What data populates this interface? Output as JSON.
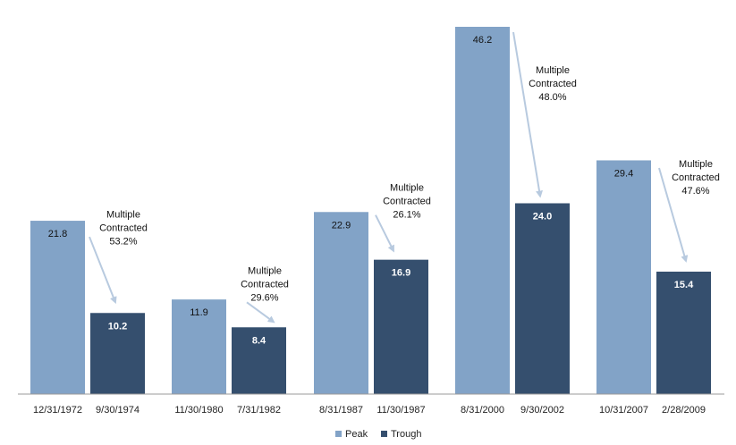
{
  "chart_data": {
    "type": "bar",
    "title": "",
    "xlabel": "",
    "ylabel": "",
    "ylim": [
      0,
      46.2
    ],
    "grid": false,
    "legend_position": "bottom",
    "colors": {
      "Peak": "#82a3c7",
      "Trough": "#354f6e",
      "arrow": "#b8cadf"
    },
    "series": [
      {
        "name": "Peak",
        "values": [
          21.8,
          11.9,
          22.9,
          46.2,
          29.4
        ]
      },
      {
        "name": "Trough",
        "values": [
          10.2,
          8.4,
          16.9,
          24.0,
          15.4
        ]
      }
    ],
    "groups": [
      {
        "peak_date": "12/31/1972",
        "trough_date": "9/30/1974",
        "peak": "21.8",
        "trough": "10.2",
        "annotation": [
          "Multiple",
          "Contracted",
          "53.2%"
        ]
      },
      {
        "peak_date": "11/30/1980",
        "trough_date": "7/31/1982",
        "peak": "11.9",
        "trough": "8.4",
        "annotation": [
          "Multiple",
          "Contracted",
          "29.6%"
        ]
      },
      {
        "peak_date": "8/31/1987",
        "trough_date": "11/30/1987",
        "peak": "22.9",
        "trough": "16.9",
        "annotation": [
          "Multiple",
          "Contracted",
          "26.1%"
        ]
      },
      {
        "peak_date": "8/31/2000",
        "trough_date": "9/30/2002",
        "peak": "46.2",
        "trough": "24.0",
        "annotation": [
          "Multiple",
          "Contracted",
          "48.0%"
        ]
      },
      {
        "peak_date": "10/31/2007",
        "trough_date": "2/28/2009",
        "peak": "29.4",
        "trough": "15.4",
        "annotation": [
          "Multiple",
          "Contracted",
          "47.6%"
        ]
      }
    ],
    "legend": [
      "Peak",
      "Trough"
    ]
  }
}
